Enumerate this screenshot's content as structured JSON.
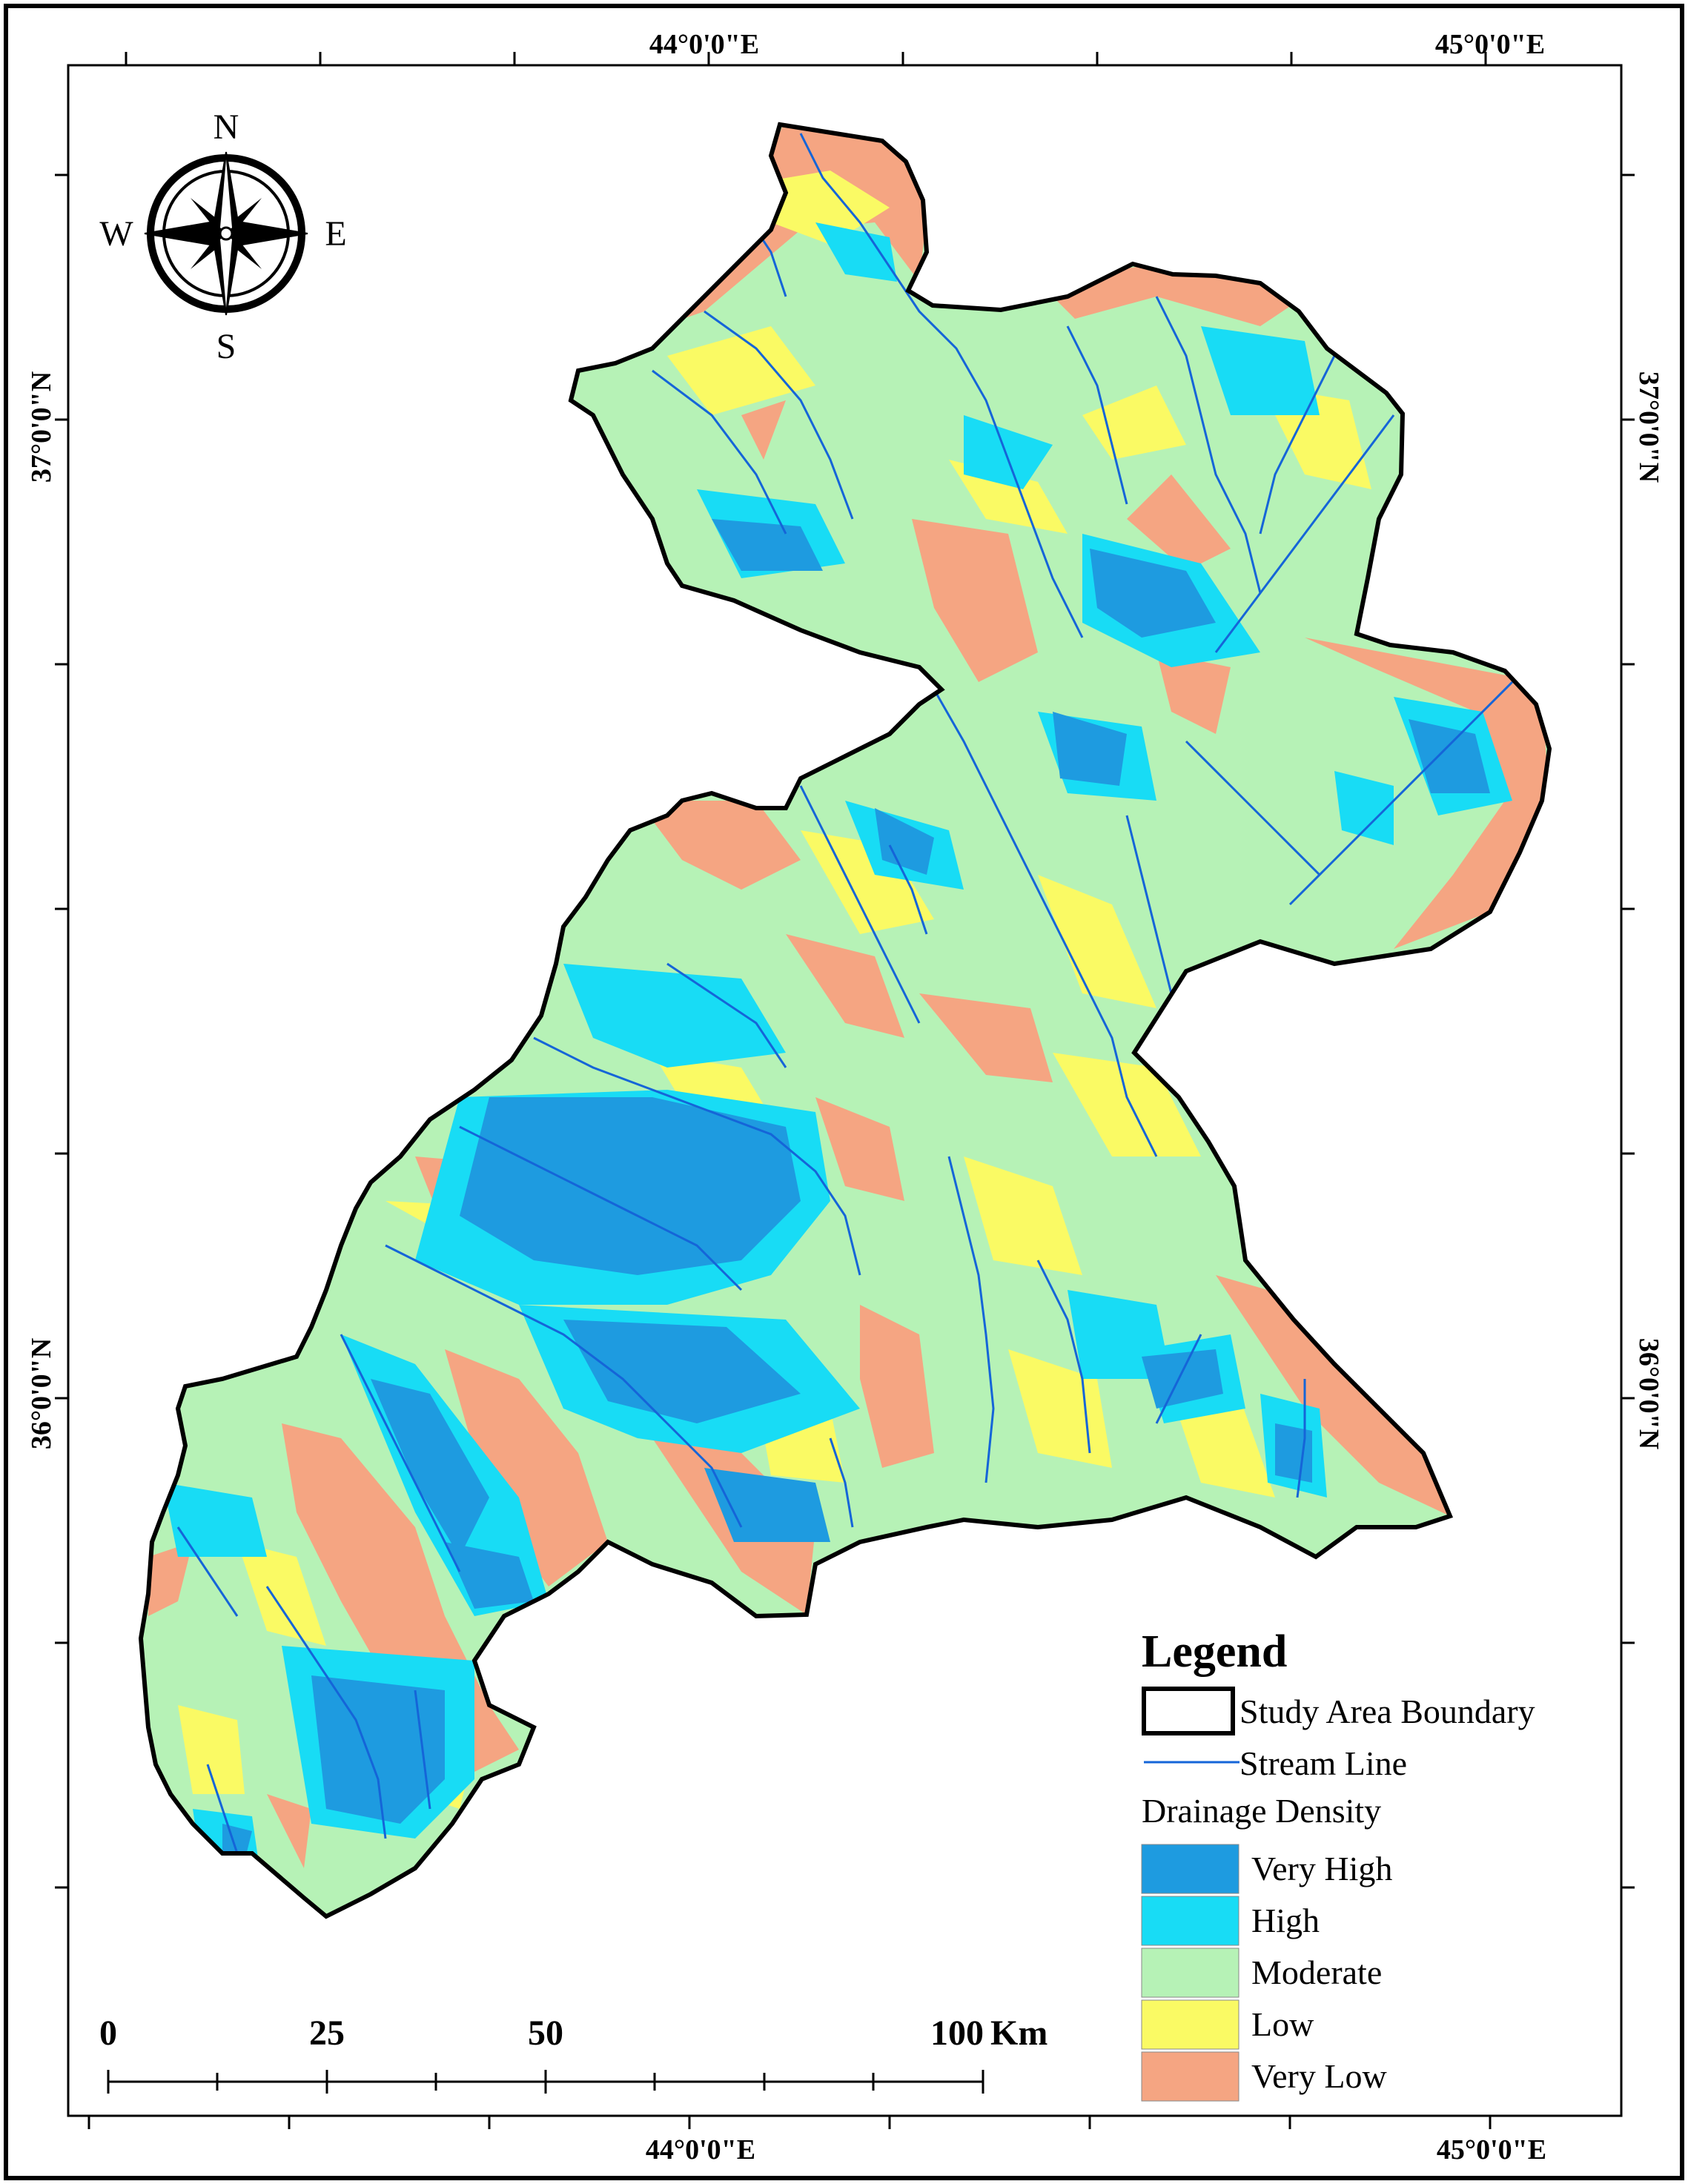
{
  "map": {
    "coordinates": {
      "top": [
        "44°0'0\"E",
        "45°0'0\"E"
      ],
      "bottom": [
        "44°0'0\"E",
        "45°0'0\"E"
      ],
      "left": [
        "37°0'0\"N",
        "36°0'0\"N"
      ],
      "right": [
        "37°0'0\"N",
        "36°0'0\"N"
      ]
    },
    "compass": {
      "n": "N",
      "s": "S",
      "e": "E",
      "w": "W"
    },
    "legend": {
      "title": "Legend",
      "boundary_label": "Study Area Boundary",
      "stream_label": "Stream Line",
      "density_title": "Drainage Density",
      "classes": [
        {
          "label": "Very High",
          "color": "#1e9be0"
        },
        {
          "label": "High",
          "color": "#18dcf5"
        },
        {
          "label": "Moderate",
          "color": "#b6f2b6"
        },
        {
          "label": "Low",
          "color": "#fafa64"
        },
        {
          "label": "Very Low",
          "color": "#f5a582"
        }
      ]
    },
    "scale_bar": {
      "ticks": [
        "0",
        "25",
        "50",
        "100"
      ],
      "unit": "Km"
    },
    "colors": {
      "stream": "#1565d8",
      "boundary": "#000000"
    }
  }
}
